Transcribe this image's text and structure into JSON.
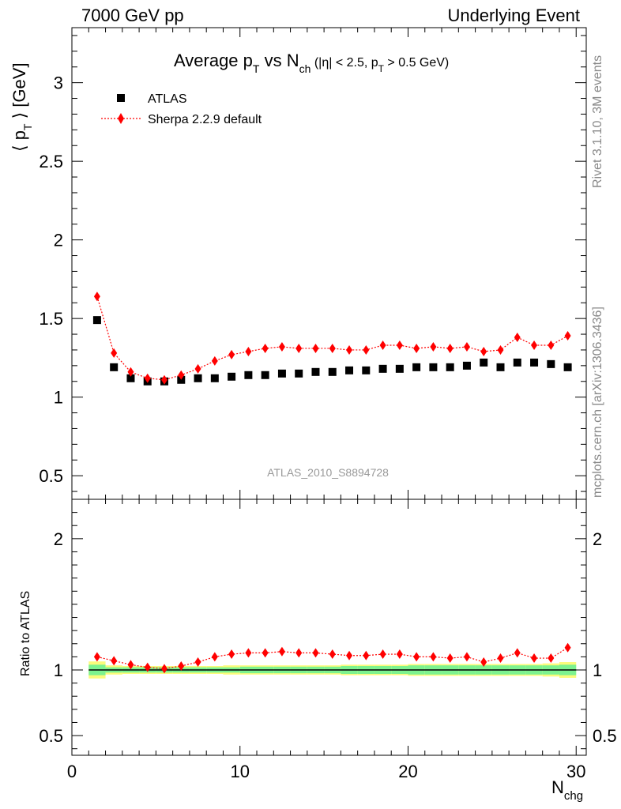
{
  "header": {
    "left": "7000 GeV pp",
    "right": "Underlying Event"
  },
  "side_labels": {
    "rivet": "Rivet 3.1.10,  3M events",
    "mcplots": "mcplots.cern.ch [arXiv:1306.3436]"
  },
  "chart_data": {
    "type": "scatter",
    "title": "Average pT vs Nch (|η| < 2.5, pT > 0.5 GeV)",
    "analysis_label": "ATLAS_2010_S8894728",
    "xlabel": "Nchg",
    "ylabel": "⟨ pT ⟩ [GeV]",
    "ratio_ylabel": "Ratio to ATLAS",
    "xlim": [
      0,
      30.6
    ],
    "ylim": [
      0.35,
      3.35
    ],
    "ratio_ylim": [
      0.35,
      2.3
    ],
    "x_ticks": [
      0,
      10,
      20,
      30
    ],
    "y_ticks": [
      0.5,
      1,
      1.5,
      2,
      2.5,
      3
    ],
    "ratio_y_ticks": [
      0.5,
      1,
      2
    ],
    "legend_position": "top-left",
    "x": [
      1.5,
      2.5,
      3.5,
      4.5,
      5.5,
      6.5,
      7.5,
      8.5,
      9.5,
      10.5,
      11.5,
      12.5,
      13.5,
      14.5,
      15.5,
      16.5,
      17.5,
      18.5,
      19.5,
      20.5,
      21.5,
      22.5,
      23.5,
      24.5,
      25.5,
      26.5,
      27.5,
      28.5,
      29.5
    ],
    "series": [
      {
        "name": "ATLAS",
        "color": "#000000",
        "marker": "square",
        "values": [
          1.49,
          1.19,
          1.12,
          1.1,
          1.1,
          1.11,
          1.12,
          1.12,
          1.13,
          1.14,
          1.14,
          1.15,
          1.15,
          1.16,
          1.16,
          1.17,
          1.17,
          1.18,
          1.18,
          1.19,
          1.19,
          1.19,
          1.2,
          1.22,
          1.19,
          1.22,
          1.22,
          1.21,
          1.19
        ]
      },
      {
        "name": "Sherpa 2.2.9 default",
        "color": "#ff0000",
        "marker": "diamond",
        "values": [
          1.64,
          1.28,
          1.16,
          1.12,
          1.11,
          1.14,
          1.18,
          1.23,
          1.27,
          1.29,
          1.31,
          1.32,
          1.31,
          1.31,
          1.31,
          1.3,
          1.3,
          1.33,
          1.33,
          1.31,
          1.32,
          1.31,
          1.32,
          1.29,
          1.3,
          1.38,
          1.33,
          1.33,
          1.39
        ]
      }
    ],
    "ratio": {
      "reference": "ATLAS",
      "sherpa_values": [
        1.1,
        1.07,
        1.04,
        1.02,
        1.01,
        1.03,
        1.06,
        1.1,
        1.12,
        1.13,
        1.13,
        1.14,
        1.13,
        1.13,
        1.12,
        1.11,
        1.11,
        1.12,
        1.12,
        1.1,
        1.1,
        1.09,
        1.1,
        1.06,
        1.09,
        1.13,
        1.09,
        1.09,
        1.17
      ],
      "band_inner_half": [
        0.04,
        0.02,
        0.02,
        0.02,
        0.02,
        0.02,
        0.02,
        0.02,
        0.02,
        0.025,
        0.025,
        0.025,
        0.025,
        0.025,
        0.025,
        0.03,
        0.03,
        0.03,
        0.03,
        0.035,
        0.035,
        0.035,
        0.035,
        0.035,
        0.035,
        0.035,
        0.035,
        0.035,
        0.04
      ],
      "band_outer_half": [
        0.065,
        0.035,
        0.03,
        0.03,
        0.03,
        0.03,
        0.03,
        0.03,
        0.035,
        0.035,
        0.035,
        0.035,
        0.035,
        0.035,
        0.035,
        0.04,
        0.04,
        0.04,
        0.04,
        0.045,
        0.045,
        0.045,
        0.045,
        0.045,
        0.045,
        0.045,
        0.045,
        0.05,
        0.06
      ],
      "band_inner_color": "#7df28f",
      "band_outer_color": "#fbfb7b"
    }
  }
}
